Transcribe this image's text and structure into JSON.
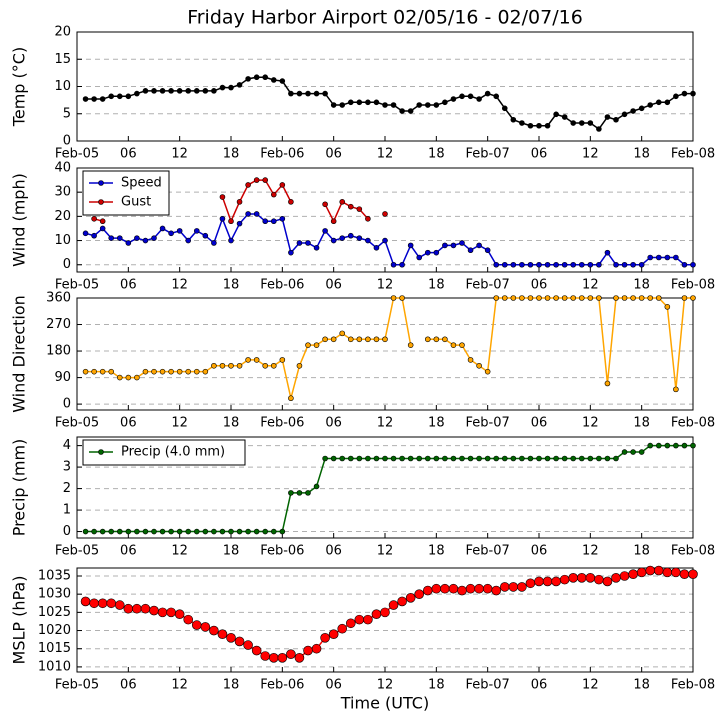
{
  "chart_data": [
    {
      "type": "line",
      "title": "Friday Harbor Airport 02/05/16 - 02/07/16",
      "ylabel": "Temp (°C)",
      "x": [
        1,
        2,
        3,
        4,
        5,
        6,
        7,
        8,
        9,
        10,
        11,
        12,
        13,
        14,
        15,
        16,
        17,
        18,
        19,
        20,
        21,
        22,
        23,
        24,
        25,
        26,
        27,
        28,
        29,
        30,
        31,
        32,
        33,
        34,
        35,
        36,
        37,
        38,
        39,
        40,
        41,
        42,
        43,
        44,
        45,
        46,
        47,
        48,
        49,
        50,
        51,
        52,
        53,
        54,
        55,
        56,
        57,
        58,
        59,
        60,
        61,
        62,
        63,
        64,
        65,
        66,
        67,
        68,
        69,
        70,
        71,
        72
      ],
      "xlim": [
        0,
        72
      ],
      "xticks": [
        {
          "value": 0,
          "label": "Feb-05"
        },
        {
          "value": 6,
          "label": "06"
        },
        {
          "value": 12,
          "label": "12"
        },
        {
          "value": 18,
          "label": "18"
        },
        {
          "value": 24,
          "label": "Feb-06"
        },
        {
          "value": 30,
          "label": "06"
        },
        {
          "value": 36,
          "label": "12"
        },
        {
          "value": 42,
          "label": "18"
        },
        {
          "value": 48,
          "label": "Feb-07"
        },
        {
          "value": 54,
          "label": "06"
        },
        {
          "value": 60,
          "label": "12"
        },
        {
          "value": 66,
          "label": "18"
        },
        {
          "value": 72,
          "label": "Feb-08"
        }
      ],
      "ylim": [
        0,
        20
      ],
      "yticks": [
        0,
        5,
        10,
        15,
        20
      ],
      "grid": true,
      "series": [
        {
          "name": "Temp",
          "color": "#000000",
          "values": [
            7.7,
            7.7,
            7.7,
            8.2,
            8.2,
            8.2,
            8.7,
            9.2,
            9.2,
            9.2,
            9.2,
            9.2,
            9.2,
            9.2,
            9.2,
            9.2,
            9.8,
            9.8,
            10.3,
            11.4,
            11.7,
            11.7,
            11.2,
            11.0,
            8.7,
            8.7,
            8.7,
            8.7,
            8.7,
            6.6,
            6.6,
            7.1,
            7.1,
            7.1,
            7.1,
            6.6,
            6.6,
            5.5,
            5.5,
            6.6,
            6.6,
            6.6,
            7.1,
            7.7,
            8.2,
            8.2,
            7.7,
            8.7,
            8.2,
            6.0,
            3.9,
            3.3,
            2.8,
            2.8,
            2.8,
            4.9,
            4.4,
            3.3,
            3.3,
            3.3,
            2.2,
            4.4,
            3.9,
            4.9,
            5.5,
            6.0,
            6.6,
            7.1,
            7.1,
            8.2,
            8.7,
            8.7
          ]
        }
      ]
    },
    {
      "type": "line",
      "ylabel": "Wind (mph)",
      "legend": "upper left",
      "x": [
        1,
        2,
        3,
        4,
        5,
        6,
        7,
        8,
        9,
        10,
        11,
        12,
        13,
        14,
        15,
        16,
        17,
        18,
        19,
        20,
        21,
        22,
        23,
        24,
        25,
        26,
        27,
        28,
        29,
        30,
        31,
        32,
        33,
        34,
        35,
        36,
        37,
        38,
        39,
        40,
        41,
        42,
        43,
        44,
        45,
        46,
        47,
        48,
        49,
        50,
        51,
        52,
        53,
        54,
        55,
        56,
        57,
        58,
        59,
        60,
        61,
        62,
        63,
        64,
        65,
        66,
        67,
        68,
        69,
        70,
        71,
        72
      ],
      "xlim": [
        0,
        72
      ],
      "xticks": [
        {
          "value": 0,
          "label": "Feb-05"
        },
        {
          "value": 6,
          "label": "06"
        },
        {
          "value": 12,
          "label": "12"
        },
        {
          "value": 18,
          "label": "18"
        },
        {
          "value": 24,
          "label": "Feb-06"
        },
        {
          "value": 30,
          "label": "06"
        },
        {
          "value": 36,
          "label": "12"
        },
        {
          "value": 42,
          "label": "18"
        },
        {
          "value": 48,
          "label": "Feb-07"
        },
        {
          "value": 54,
          "label": "06"
        },
        {
          "value": 60,
          "label": "12"
        },
        {
          "value": 66,
          "label": "18"
        },
        {
          "value": 72,
          "label": "Feb-08"
        }
      ],
      "ylim": [
        -3,
        40
      ],
      "yticks": [
        0,
        10,
        20,
        30,
        40
      ],
      "grid": true,
      "series": [
        {
          "name": "Speed",
          "color": "#0000cc",
          "values": [
            13,
            12,
            15,
            11,
            11,
            9,
            11,
            10,
            11,
            15,
            13,
            14,
            10,
            14,
            12,
            9,
            19,
            10,
            17,
            21,
            21,
            18,
            18,
            19,
            5,
            9,
            9,
            7,
            14,
            10,
            11,
            12,
            11,
            10,
            7,
            10,
            0,
            0,
            8,
            3,
            5,
            5,
            8,
            8,
            9,
            6,
            8,
            6,
            0,
            0,
            0,
            0,
            0,
            0,
            0,
            0,
            0,
            0,
            0,
            0,
            0,
            5,
            0,
            0,
            0,
            0,
            3,
            3,
            3,
            3,
            0,
            0
          ]
        },
        {
          "name": "Gust",
          "color": "#cc0000",
          "values": [
            null,
            19,
            18,
            null,
            null,
            null,
            null,
            null,
            null,
            null,
            null,
            null,
            null,
            null,
            null,
            null,
            28,
            18,
            26,
            33,
            35,
            35,
            29,
            33,
            26,
            null,
            null,
            null,
            25,
            18,
            26,
            24,
            23,
            19,
            null,
            21,
            null,
            null,
            null,
            null,
            null,
            null,
            null,
            null,
            null,
            null,
            null,
            null,
            null,
            null,
            null,
            null,
            null,
            null,
            null,
            null,
            null,
            null,
            null,
            null,
            null,
            null,
            null,
            null,
            null,
            null,
            null,
            null,
            null,
            null,
            null,
            null
          ]
        }
      ]
    },
    {
      "type": "line",
      "ylabel": "Wind Direction",
      "x": [
        1,
        2,
        3,
        4,
        5,
        6,
        7,
        8,
        9,
        10,
        11,
        12,
        13,
        14,
        15,
        16,
        17,
        18,
        19,
        20,
        21,
        22,
        23,
        24,
        25,
        26,
        27,
        28,
        29,
        30,
        31,
        32,
        33,
        34,
        35,
        36,
        37,
        38,
        39,
        40,
        41,
        42,
        43,
        44,
        45,
        46,
        47,
        48,
        49,
        50,
        51,
        52,
        53,
        54,
        55,
        56,
        57,
        58,
        59,
        60,
        61,
        62,
        63,
        64,
        65,
        66,
        67,
        68,
        69,
        70,
        71,
        72
      ],
      "xlim": [
        0,
        72
      ],
      "xticks": [
        {
          "value": 0,
          "label": "Feb-05"
        },
        {
          "value": 6,
          "label": "06"
        },
        {
          "value": 12,
          "label": "12"
        },
        {
          "value": 18,
          "label": "18"
        },
        {
          "value": 24,
          "label": "Feb-06"
        },
        {
          "value": 30,
          "label": "06"
        },
        {
          "value": 36,
          "label": "12"
        },
        {
          "value": 42,
          "label": "18"
        },
        {
          "value": 48,
          "label": "Feb-07"
        },
        {
          "value": 54,
          "label": "06"
        },
        {
          "value": 60,
          "label": "12"
        },
        {
          "value": 66,
          "label": "18"
        },
        {
          "value": 72,
          "label": "Feb-08"
        }
      ],
      "ylim": [
        -20,
        360
      ],
      "yticks": [
        0,
        90,
        180,
        270,
        360
      ],
      "grid": true,
      "series": [
        {
          "name": "Wind Direction",
          "color": "#ffa500",
          "values": [
            110,
            110,
            110,
            110,
            90,
            90,
            90,
            110,
            110,
            110,
            110,
            110,
            110,
            110,
            110,
            130,
            130,
            130,
            130,
            150,
            150,
            130,
            130,
            150,
            20,
            130,
            200,
            200,
            220,
            220,
            240,
            220,
            220,
            220,
            220,
            220,
            360,
            360,
            200,
            null,
            220,
            220,
            220,
            200,
            200,
            150,
            130,
            110,
            360,
            360,
            360,
            360,
            360,
            360,
            360,
            360,
            360,
            360,
            360,
            360,
            360,
            70,
            360,
            360,
            360,
            360,
            360,
            360,
            330,
            50,
            360,
            360
          ]
        }
      ]
    },
    {
      "type": "line",
      "ylabel": "Precip (mm)",
      "legend": "upper left",
      "x": [
        1,
        2,
        3,
        4,
        5,
        6,
        7,
        8,
        9,
        10,
        11,
        12,
        13,
        14,
        15,
        16,
        17,
        18,
        19,
        20,
        21,
        22,
        23,
        24,
        25,
        26,
        27,
        28,
        29,
        30,
        31,
        32,
        33,
        34,
        35,
        36,
        37,
        38,
        39,
        40,
        41,
        42,
        43,
        44,
        45,
        46,
        47,
        48,
        49,
        50,
        51,
        52,
        53,
        54,
        55,
        56,
        57,
        58,
        59,
        60,
        61,
        62,
        63,
        64,
        65,
        66,
        67,
        68,
        69,
        70,
        71,
        72
      ],
      "xlim": [
        0,
        72
      ],
      "xticks": [
        {
          "value": 0,
          "label": "Feb-05"
        },
        {
          "value": 6,
          "label": "06"
        },
        {
          "value": 12,
          "label": "12"
        },
        {
          "value": 18,
          "label": "18"
        },
        {
          "value": 24,
          "label": "Feb-06"
        },
        {
          "value": 30,
          "label": "06"
        },
        {
          "value": 36,
          "label": "12"
        },
        {
          "value": 42,
          "label": "18"
        },
        {
          "value": 48,
          "label": "Feb-07"
        },
        {
          "value": 54,
          "label": "06"
        },
        {
          "value": 60,
          "label": "12"
        },
        {
          "value": 66,
          "label": "18"
        },
        {
          "value": 72,
          "label": "Feb-08"
        }
      ],
      "ylim": [
        -0.3,
        4.4
      ],
      "yticks": [
        0,
        1,
        2,
        3,
        4
      ],
      "grid": true,
      "series": [
        {
          "name": "Precip (4.0 mm)",
          "color": "#006400",
          "values": [
            0,
            0,
            0,
            0,
            0,
            0,
            0,
            0,
            0,
            0,
            0,
            0,
            0,
            0,
            0,
            0,
            0,
            0,
            0,
            0,
            0,
            0,
            0,
            0,
            1.8,
            1.8,
            1.8,
            2.1,
            3.4,
            3.4,
            3.4,
            3.4,
            3.4,
            3.4,
            3.4,
            3.4,
            3.4,
            3.4,
            3.4,
            3.4,
            3.4,
            3.4,
            3.4,
            3.4,
            3.4,
            3.4,
            3.4,
            3.4,
            3.4,
            3.4,
            3.4,
            3.4,
            3.4,
            3.4,
            3.4,
            3.4,
            3.4,
            3.4,
            3.4,
            3.4,
            3.4,
            3.4,
            3.4,
            3.7,
            3.7,
            3.7,
            4.0,
            4.0,
            4.0,
            4.0,
            4.0,
            4.0
          ]
        }
      ]
    },
    {
      "type": "line",
      "ylabel": "MSLP (hPa)",
      "xlabel": "Time (UTC)",
      "x": [
        1,
        2,
        3,
        4,
        5,
        6,
        7,
        8,
        9,
        10,
        11,
        12,
        13,
        14,
        15,
        16,
        17,
        18,
        19,
        20,
        21,
        22,
        23,
        24,
        25,
        26,
        27,
        28,
        29,
        30,
        31,
        32,
        33,
        34,
        35,
        36,
        37,
        38,
        39,
        40,
        41,
        42,
        43,
        44,
        45,
        46,
        47,
        48,
        49,
        50,
        51,
        52,
        53,
        54,
        55,
        56,
        57,
        58,
        59,
        60,
        61,
        62,
        63,
        64,
        65,
        66,
        67,
        68,
        69,
        70,
        71,
        72
      ],
      "xlim": [
        0,
        72
      ],
      "xticks": [
        {
          "value": 0,
          "label": "Feb-05"
        },
        {
          "value": 6,
          "label": "06"
        },
        {
          "value": 12,
          "label": "12"
        },
        {
          "value": 18,
          "label": "18"
        },
        {
          "value": 24,
          "label": "Feb-06"
        },
        {
          "value": 30,
          "label": "06"
        },
        {
          "value": 36,
          "label": "12"
        },
        {
          "value": 42,
          "label": "18"
        },
        {
          "value": 48,
          "label": "Feb-07"
        },
        {
          "value": 54,
          "label": "06"
        },
        {
          "value": 60,
          "label": "12"
        },
        {
          "value": 66,
          "label": "18"
        },
        {
          "value": 72,
          "label": "Feb-08"
        }
      ],
      "ylim": [
        1008.6,
        1037.2
      ],
      "yticks": [
        1010,
        1015,
        1020,
        1025,
        1030,
        1035
      ],
      "grid": true,
      "series": [
        {
          "name": "MSLP",
          "color": "#ff0000",
          "values": [
            1028,
            1027.5,
            1027.5,
            1027.5,
            1027,
            1026,
            1026,
            1026,
            1025.5,
            1025,
            1025,
            1024.5,
            1023,
            1021.5,
            1021,
            1020,
            1019,
            1018,
            1017,
            1016,
            1014.5,
            1013,
            1012.5,
            1012.5,
            1013.5,
            1012.5,
            1014.5,
            1015,
            1018,
            1019,
            1020.5,
            1022,
            1023,
            1023,
            1024.5,
            1025,
            1027,
            1028,
            1029,
            1030,
            1031,
            1031.5,
            1031.5,
            1031.5,
            1031,
            1031.5,
            1031.5,
            1031.5,
            1031,
            1032,
            1032,
            1032,
            1033,
            1033.5,
            1033.5,
            1033.5,
            1034,
            1034.5,
            1034.5,
            1034.5,
            1034,
            1033.5,
            1034.5,
            1035,
            1035.5,
            1036,
            1036.5,
            1036.5,
            1036,
            1036,
            1035.5,
            1035.5
          ]
        }
      ]
    }
  ]
}
